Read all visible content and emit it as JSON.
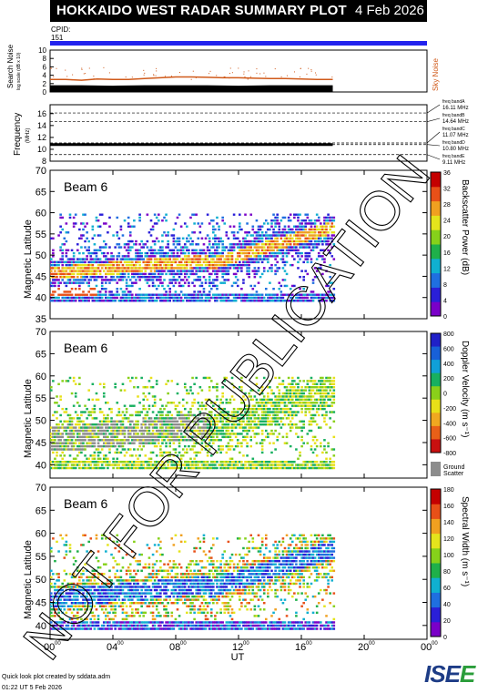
{
  "title": "HOKKAIDO WEST RADAR SUMMARY PLOT",
  "date": "4 Feb 2026",
  "cpid_label": "CPID:",
  "cpid_value": "151",
  "watermark": "NOT FOR PUBLICATION",
  "footer_line1": "Quick look plot created by sddata.adm",
  "footer_line2": "01:22 UT 5 Feb 2026",
  "logo_text": "ISEE",
  "colors": {
    "title_bg": "#000000",
    "cpid_bar": "#2222ee",
    "noise_search": "#000000",
    "noise_sky": "#d05a1a",
    "ground_scatter": "#8c8c8c",
    "logo_blue": "#1d3c86",
    "logo_green": "#2a9d3a"
  },
  "chart_data": [
    {
      "type": "area",
      "panel": "noise",
      "ylabel": "Search Noise",
      "ylabel_sub": "log scale (dB x 10)",
      "right_label": "Sky Noise",
      "yticks": [
        "0",
        "2",
        "4",
        "6",
        "8",
        "10"
      ],
      "ylim": [
        0,
        10
      ],
      "xlim": [
        0,
        24
      ],
      "series": [
        {
          "name": "Search Noise",
          "x": [
            0,
            2,
            4,
            6,
            8,
            10,
            12,
            14,
            16,
            18
          ],
          "y": [
            1.6,
            1.6,
            1.5,
            1.6,
            1.6,
            1.6,
            1.5,
            1.6,
            1.6,
            1.6
          ]
        },
        {
          "name": "Sky Noise",
          "x": [
            0,
            1,
            2,
            3,
            4,
            5,
            6,
            7,
            8,
            9,
            10,
            11,
            12,
            13,
            14,
            15,
            16,
            17,
            18
          ],
          "y": [
            3.0,
            3.0,
            2.8,
            3.1,
            3.0,
            3.0,
            3.2,
            3.4,
            3.6,
            3.6,
            3.5,
            3.4,
            3.4,
            3.3,
            3.2,
            3.2,
            3.1,
            3.0,
            3.0
          ]
        }
      ]
    },
    {
      "type": "line",
      "panel": "frequency",
      "ylabel": "Frequency",
      "ylabel_unit": "(MHz)",
      "yticks": [
        "8",
        "10",
        "12",
        "14",
        "16"
      ],
      "ylim": [
        8,
        17.5
      ],
      "xlim": [
        0,
        24
      ],
      "bands": [
        {
          "label": "freq bandA",
          "value": "16.11 MHz",
          "freq": 16.11
        },
        {
          "label": "freq bandB",
          "value": "14.64 MHz",
          "freq": 14.64
        },
        {
          "label": "freq bandC",
          "value": "11.07 MHz",
          "freq": 11.07
        },
        {
          "label": "freq bandD",
          "value": "10.80 MHz",
          "freq": 10.8
        },
        {
          "label": "freq bandE",
          "value": "9.11 MHz",
          "freq": 9.11
        }
      ],
      "series": [
        {
          "x": [
            0,
            18
          ],
          "y": [
            10.8,
            10.8
          ]
        }
      ]
    },
    {
      "type": "heatmap",
      "panel": "power",
      "beam_label": "Beam 6",
      "ylabel": "Magnetic Latitude",
      "yticks": [
        "35",
        "40",
        "45",
        "50",
        "55",
        "60",
        "65",
        "70"
      ],
      "ylim": [
        35,
        70
      ],
      "xlim": [
        0,
        24
      ],
      "colorbar_label": "Backscatter Power (dB)",
      "colorbar_ticks": [
        "0",
        "4",
        "8",
        "12",
        "16",
        "20",
        "24",
        "28",
        "32",
        "36"
      ],
      "colorbar_range": [
        0,
        36
      ]
    },
    {
      "type": "heatmap",
      "panel": "velocity",
      "beam_label": "Beam 6",
      "ylabel": "Magnetic Latitude",
      "yticks": [
        "40",
        "45",
        "50",
        "55",
        "60",
        "65",
        "70"
      ],
      "ylim": [
        37,
        70
      ],
      "xlim": [
        0,
        24
      ],
      "colorbar_label": "Doppler Velocity (m s⁻¹)",
      "colorbar_ticks": [
        "800",
        "600",
        "400",
        "200",
        "0",
        "-200",
        "-400",
        "-600",
        "-800"
      ],
      "colorbar_range": [
        -800,
        800
      ],
      "ground_label": "Ground",
      "ground_label2": "Scatter"
    },
    {
      "type": "heatmap",
      "panel": "width",
      "beam_label": "Beam 6",
      "ylabel": "Magnetic Latitude",
      "yticks": [
        "40",
        "45",
        "50",
        "55",
        "60",
        "65",
        "70"
      ],
      "ylim": [
        37,
        70
      ],
      "xlim": [
        0,
        24
      ],
      "xlabel": "UT",
      "xticks": [
        "00",
        "04",
        "08",
        "12",
        "16",
        "20",
        "00"
      ],
      "xtick_sup": "00",
      "colorbar_label": "Spectral Width (m s⁻¹)",
      "colorbar_ticks": [
        "0",
        "20",
        "40",
        "60",
        "80",
        "100",
        "120",
        "140",
        "160",
        "180"
      ],
      "colorbar_range": [
        0,
        180
      ]
    }
  ]
}
